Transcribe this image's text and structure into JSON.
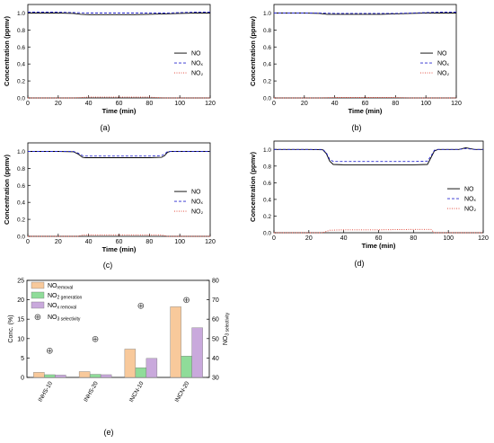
{
  "chart_data": [
    {
      "panel": "(a)",
      "type": "line",
      "xlabel": "Time (min)",
      "ylabel": "Concentration (ppmv)",
      "xlim": [
        0,
        120
      ],
      "ylim": [
        0,
        1.1
      ],
      "xticks": [
        0,
        20,
        40,
        60,
        80,
        100,
        120
      ],
      "yticks": [
        0.0,
        0.2,
        0.4,
        0.6,
        0.8,
        1.0
      ],
      "tick_labels_x": [
        "0",
        "20",
        "40",
        "60",
        "80",
        "100",
        "120"
      ],
      "tick_labels_y": [
        "0.0",
        "0.2",
        "0.4",
        "0.6",
        "0.8",
        "1.0"
      ],
      "legend": "right",
      "series": [
        {
          "name": "NO",
          "color": "#000000",
          "style": "solid",
          "x": [
            0,
            10,
            20,
            30,
            35,
            40,
            50,
            60,
            70,
            80,
            90,
            100,
            110,
            120
          ],
          "y": [
            1.0,
            1.0,
            1.0,
            0.995,
            0.985,
            0.98,
            0.98,
            0.98,
            0.98,
            0.985,
            0.99,
            0.995,
            1.0,
            1.0
          ]
        },
        {
          "name": "NOₓ",
          "color": "#2a2acf",
          "style": "dashed",
          "x": [
            0,
            10,
            20,
            30,
            40,
            50,
            60,
            70,
            80,
            90,
            100,
            110,
            120
          ],
          "y": [
            1.01,
            1.01,
            1.01,
            1.005,
            1.0,
            1.0,
            1.0,
            1.0,
            1.0,
            1.0,
            1.005,
            1.01,
            1.01
          ]
        },
        {
          "name": "NO₂",
          "color": "#e03a2a",
          "style": "dotted",
          "x": [
            0,
            30,
            40,
            60,
            80,
            90,
            120
          ],
          "y": [
            0.0,
            0.0,
            0.01,
            0.01,
            0.01,
            0.0,
            0.0
          ]
        }
      ]
    },
    {
      "panel": "(b)",
      "type": "line",
      "xlabel": "Time (min)",
      "ylabel": "Concentration (ppmv)",
      "xlim": [
        0,
        120
      ],
      "ylim": [
        0,
        1.1
      ],
      "xticks": [
        0,
        20,
        40,
        60,
        80,
        100,
        120
      ],
      "yticks": [
        0.0,
        0.2,
        0.4,
        0.6,
        0.8,
        1.0
      ],
      "tick_labels_x": [
        "0",
        "20",
        "40",
        "60",
        "80",
        "100",
        "120"
      ],
      "tick_labels_y": [
        "0.0",
        "0.2",
        "0.4",
        "0.6",
        "0.8",
        "1.0"
      ],
      "legend": "right",
      "series": [
        {
          "name": "NO",
          "color": "#000000",
          "style": "solid",
          "x": [
            0,
            10,
            20,
            30,
            35,
            40,
            50,
            60,
            70,
            80,
            90,
            100,
            110,
            120
          ],
          "y": [
            1.0,
            1.0,
            1.0,
            0.995,
            0.985,
            0.985,
            0.985,
            0.985,
            0.985,
            0.99,
            0.995,
            1.0,
            1.0,
            1.0
          ]
        },
        {
          "name": "NOₓ",
          "color": "#2a2acf",
          "style": "dashed",
          "x": [
            0,
            10,
            20,
            30,
            40,
            50,
            60,
            70,
            80,
            90,
            100,
            110,
            120
          ],
          "y": [
            1.0,
            1.0,
            1.0,
            1.0,
            0.995,
            0.995,
            0.995,
            0.995,
            0.995,
            1.0,
            1.005,
            1.01,
            1.01
          ]
        },
        {
          "name": "NO₂",
          "color": "#e03a2a",
          "style": "dotted",
          "x": [
            0,
            30,
            40,
            60,
            80,
            90,
            120
          ],
          "y": [
            0.0,
            0.0,
            0.005,
            0.005,
            0.005,
            0.0,
            0.0
          ]
        }
      ]
    },
    {
      "panel": "(c)",
      "type": "line",
      "xlabel": "Time (min)",
      "ylabel": "Concentration (ppmv)",
      "xlim": [
        0,
        120
      ],
      "ylim": [
        0,
        1.1
      ],
      "xticks": [
        0,
        20,
        40,
        60,
        80,
        100,
        120
      ],
      "yticks": [
        0.0,
        0.2,
        0.4,
        0.6,
        0.8,
        1.0
      ],
      "tick_labels_x": [
        "0",
        "20",
        "40",
        "60",
        "80",
        "100",
        "120"
      ],
      "tick_labels_y": [
        "0.0",
        "0.2",
        "0.4",
        "0.6",
        "0.8",
        "1.0"
      ],
      "legend": "right",
      "series": [
        {
          "name": "NO",
          "color": "#000000",
          "style": "solid",
          "x": [
            0,
            10,
            20,
            30,
            33,
            36,
            38,
            50,
            60,
            70,
            80,
            88,
            90,
            92,
            94,
            100,
            110,
            120
          ],
          "y": [
            1.0,
            1.0,
            1.0,
            0.995,
            0.97,
            0.93,
            0.925,
            0.925,
            0.925,
            0.925,
            0.925,
            0.93,
            0.95,
            0.99,
            1.0,
            1.0,
            1.0,
            1.0
          ]
        },
        {
          "name": "NOₓ",
          "color": "#2a2acf",
          "style": "dashed",
          "x": [
            0,
            10,
            20,
            30,
            33,
            36,
            38,
            50,
            60,
            70,
            80,
            88,
            90,
            92,
            94,
            100,
            110,
            120
          ],
          "y": [
            1.0,
            1.0,
            1.0,
            1.0,
            0.98,
            0.95,
            0.945,
            0.945,
            0.945,
            0.945,
            0.945,
            0.95,
            0.97,
            1.0,
            1.0,
            1.0,
            1.0,
            1.0
          ]
        },
        {
          "name": "NO₂",
          "color": "#e03a2a",
          "style": "dotted",
          "x": [
            0,
            33,
            36,
            60,
            88,
            92,
            120
          ],
          "y": [
            0.0,
            0.0,
            0.015,
            0.015,
            0.015,
            0.0,
            0.0
          ]
        }
      ]
    },
    {
      "panel": "(d)",
      "type": "line",
      "xlabel": "Time (min)",
      "ylabel": "Concentration (ppmv)",
      "xlim": [
        0,
        120
      ],
      "ylim": [
        0,
        1.1
      ],
      "xticks": [
        0,
        20,
        40,
        60,
        80,
        100,
        120
      ],
      "yticks": [
        0.0,
        0.2,
        0.4,
        0.6,
        0.8,
        1.0
      ],
      "tick_labels_x": [
        "0",
        "20",
        "40",
        "60",
        "80",
        "100",
        "120"
      ],
      "tick_labels_y": [
        "0.0",
        "0.2",
        "0.4",
        "0.6",
        "0.8",
        "1.0"
      ],
      "legend": "right",
      "series": [
        {
          "name": "NO",
          "color": "#000000",
          "style": "solid",
          "x": [
            0,
            10,
            20,
            28,
            30,
            32,
            34,
            40,
            60,
            80,
            88,
            90,
            92,
            94,
            100,
            106,
            110,
            115,
            120
          ],
          "y": [
            1.0,
            1.0,
            1.0,
            0.995,
            0.95,
            0.86,
            0.82,
            0.815,
            0.815,
            0.815,
            0.82,
            0.9,
            0.98,
            1.0,
            1.0,
            1.0,
            1.02,
            1.0,
            1.0
          ]
        },
        {
          "name": "NOₓ",
          "color": "#2a2acf",
          "style": "dashed",
          "x": [
            0,
            10,
            20,
            28,
            30,
            32,
            34,
            40,
            60,
            80,
            88,
            90,
            92,
            94,
            100,
            106,
            110,
            115,
            120
          ],
          "y": [
            1.0,
            1.0,
            1.0,
            1.0,
            0.96,
            0.88,
            0.855,
            0.855,
            0.855,
            0.855,
            0.86,
            0.92,
            0.99,
            1.0,
            1.0,
            1.0,
            1.01,
            1.0,
            1.0
          ]
        },
        {
          "name": "NO₂",
          "color": "#e03a2a",
          "style": "dotted",
          "x": [
            0,
            28,
            32,
            40,
            60,
            80,
            90,
            92,
            120
          ],
          "y": [
            0.0,
            0.0,
            0.03,
            0.035,
            0.035,
            0.04,
            0.04,
            0.0,
            0.0
          ]
        }
      ]
    },
    {
      "panel": "(e)",
      "type": "bar",
      "categories": [
        "INHS-10",
        "INHS-20",
        "INCN-10",
        "INCN-20"
      ],
      "ylabel": "Conc. (%)",
      "y2label_base": "NO",
      "y2label_sub": "3 selectivity",
      "ylim": [
        0,
        25
      ],
      "y2lim": [
        30,
        80
      ],
      "yticks": [
        0,
        5,
        10,
        15,
        20,
        25
      ],
      "y2ticks": [
        30,
        40,
        50,
        60,
        70,
        80
      ],
      "tick_labels_y": [
        "0",
        "5",
        "10",
        "15",
        "20",
        "25"
      ],
      "tick_labels_y2": [
        "30",
        "40",
        "50",
        "60",
        "70",
        "80"
      ],
      "legend": "top-left",
      "series": [
        {
          "name_base": "NO",
          "name_sub": "removal",
          "color": "#f8c99b",
          "values": [
            1.3,
            1.5,
            7.3,
            18.2
          ]
        },
        {
          "name_base": "NO",
          "name_sub": "2 generation",
          "color": "#8fdc99",
          "values": [
            0.7,
            0.8,
            2.5,
            5.5
          ]
        },
        {
          "name_base": "NO",
          "name_sub": "x removal",
          "color": "#c9a9dc",
          "values": [
            0.6,
            0.7,
            4.9,
            12.8
          ]
        }
      ],
      "markers": {
        "name_base": "NO",
        "name_sub": "3 selectivity",
        "symbol": "⊕",
        "color": "#444444",
        "values": [
          44,
          50,
          67,
          70
        ],
        "axis": "right"
      }
    }
  ],
  "captions": [
    "(a)",
    "(b)",
    "(c)",
    "(d)",
    "(e)"
  ]
}
